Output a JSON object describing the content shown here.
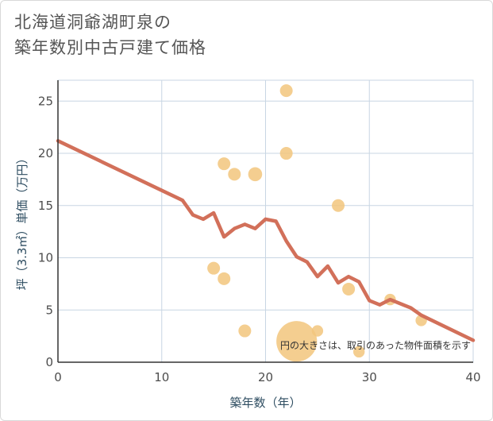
{
  "chart_data": {
    "type": "scatter",
    "title_lines": [
      "北海道洞爺湖町泉の",
      "築年数別中古戸建て価格"
    ],
    "xlabel": "築年数（年）",
    "ylabel": "坪（3.3㎡）単価（万円）",
    "xlim": [
      0,
      40
    ],
    "ylim": [
      0,
      27
    ],
    "x_ticks": [
      0,
      10,
      20,
      30,
      40
    ],
    "y_ticks": [
      0,
      5,
      10,
      15,
      20,
      25
    ],
    "grid": true,
    "note": "円の大きさは、取引のあった物件面積を示す",
    "colors": {
      "point": "#f2c57c",
      "trend": "#d2705a",
      "grid": "#c8d6e3",
      "axis": "#333333"
    },
    "points": [
      {
        "x": 15,
        "y": 9,
        "size": 1
      },
      {
        "x": 16,
        "y": 8,
        "size": 1
      },
      {
        "x": 16,
        "y": 19,
        "size": 1
      },
      {
        "x": 17,
        "y": 18,
        "size": 1
      },
      {
        "x": 18,
        "y": 3,
        "size": 1
      },
      {
        "x": 19,
        "y": 18,
        "size": 1.1
      },
      {
        "x": 22,
        "y": 26,
        "size": 1
      },
      {
        "x": 22,
        "y": 20,
        "size": 1
      },
      {
        "x": 23,
        "y": 2,
        "size": 3.2
      },
      {
        "x": 25,
        "y": 3,
        "size": 0.9
      },
      {
        "x": 27,
        "y": 15,
        "size": 1
      },
      {
        "x": 28,
        "y": 7,
        "size": 1
      },
      {
        "x": 29,
        "y": 1,
        "size": 0.9
      },
      {
        "x": 32,
        "y": 6,
        "size": 0.9
      },
      {
        "x": 35,
        "y": 4,
        "size": 0.9
      }
    ],
    "trend": [
      {
        "x": 0,
        "y": 21.2
      },
      {
        "x": 12,
        "y": 15.5
      },
      {
        "x": 13,
        "y": 14.1
      },
      {
        "x": 14,
        "y": 13.7
      },
      {
        "x": 15,
        "y": 14.3
      },
      {
        "x": 16,
        "y": 12.0
      },
      {
        "x": 17,
        "y": 12.8
      },
      {
        "x": 18,
        "y": 13.2
      },
      {
        "x": 19,
        "y": 12.8
      },
      {
        "x": 20,
        "y": 13.7
      },
      {
        "x": 21,
        "y": 13.5
      },
      {
        "x": 22,
        "y": 11.6
      },
      {
        "x": 23,
        "y": 10.1
      },
      {
        "x": 24,
        "y": 9.6
      },
      {
        "x": 25,
        "y": 8.2
      },
      {
        "x": 26,
        "y": 9.2
      },
      {
        "x": 27,
        "y": 7.6
      },
      {
        "x": 28,
        "y": 8.2
      },
      {
        "x": 29,
        "y": 7.7
      },
      {
        "x": 30,
        "y": 5.9
      },
      {
        "x": 31,
        "y": 5.5
      },
      {
        "x": 32,
        "y": 6.0
      },
      {
        "x": 34,
        "y": 5.2
      },
      {
        "x": 35,
        "y": 4.5
      },
      {
        "x": 40,
        "y": 2.1
      }
    ]
  }
}
